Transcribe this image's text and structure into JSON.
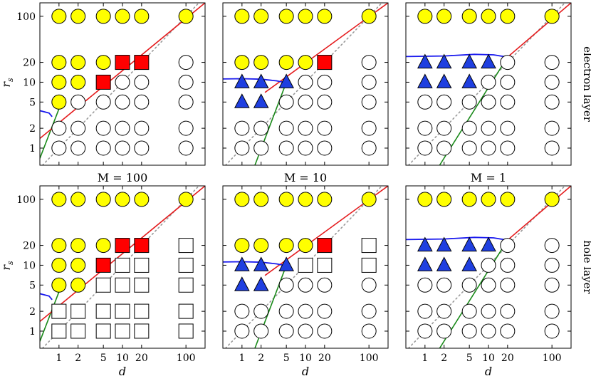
{
  "chart_data": {
    "type": "scatter",
    "x_scale": "log",
    "y_scale": "log",
    "xlim": [
      0.5,
      200
    ],
    "ylim": [
      0.55,
      160
    ],
    "xlabel": "d",
    "ylabel": "r_s",
    "x_ticks": [
      1,
      2,
      5,
      10,
      20,
      100
    ],
    "y_ticks": [
      1,
      2,
      5,
      10,
      20,
      100
    ],
    "column_labels": [
      "M = 100",
      "M = 10",
      "M = 1"
    ],
    "row_labels": [
      "electron layer",
      "hole layer"
    ],
    "x_grid": [
      1,
      2,
      5,
      10,
      20,
      100
    ],
    "y_grid": [
      1,
      2,
      5,
      10,
      20,
      100
    ],
    "marker_colors": {
      "Y": "#ffff00",
      "R": "#ff0000",
      "B": "#1f3fe0",
      "W": "#ffffff"
    },
    "marker_shapes": {
      "Y": "circle",
      "R": "square",
      "B": "triangle",
      "W": "circle",
      "S": "square"
    },
    "line_colors": {
      "red": "#e41a1c",
      "green": "#1a8a1a",
      "blue": "#1a1aee",
      "dotted": "#999999"
    },
    "panels": [
      {
        "row": "electron layer",
        "M": 100,
        "grid": [
          "YYYYYY",
          "YYYRRW",
          "YYRWWW",
          "YWWWWW",
          "WWWWWW",
          "WWWWWW"
        ],
        "red_line": [
          [
            0.5,
            1.4
          ],
          [
            200,
            160
          ]
        ],
        "green_line": [
          [
            0.5,
            0.7
          ],
          [
            1.1,
            5
          ]
        ],
        "blue_curve": [
          [
            0.5,
            3.7
          ],
          [
            0.7,
            3.4
          ],
          [
            0.78,
            3.0
          ]
        ],
        "dotted_line": [
          [
            0.55,
            0.55
          ],
          [
            200,
            200
          ]
        ]
      },
      {
        "row": "electron layer",
        "M": 10,
        "grid": [
          "YYYYYY",
          "YYYYRW",
          "BBBWWW",
          "BBWWWW",
          "WWWWWW",
          "WWWWWW"
        ],
        "red_line": [
          [
            2.3,
            7
          ],
          [
            200,
            160
          ]
        ],
        "green_line": [
          [
            1.6,
            0.55
          ],
          [
            5,
            10
          ]
        ],
        "blue_curve": [
          [
            0.5,
            11.2
          ],
          [
            1,
            11.3
          ],
          [
            2,
            11.1
          ],
          [
            3.5,
            10.5
          ],
          [
            5,
            9.8
          ]
        ],
        "dotted_line": [
          [
            0.55,
            0.55
          ],
          [
            200,
            200
          ]
        ]
      },
      {
        "row": "electron layer",
        "M": 1,
        "grid": [
          "YYYYYY",
          "BBBBWW",
          "BBBWWW",
          "WWWWWW",
          "WWWWWW",
          "WWWWWW"
        ],
        "red_line": [
          [
            20,
            24
          ],
          [
            200,
            160
          ]
        ],
        "green_line": [
          [
            1.7,
            0.55
          ],
          [
            20,
            24
          ]
        ],
        "blue_curve": [
          [
            0.5,
            24.5
          ],
          [
            2,
            25
          ],
          [
            6,
            26.5
          ],
          [
            12,
            26
          ],
          [
            20,
            24
          ]
        ],
        "dotted_line": [
          [
            0.55,
            0.55
          ],
          [
            200,
            200
          ]
        ]
      },
      {
        "row": "hole layer",
        "M": 100,
        "grid": [
          "YYYYYY",
          "YYYRRS",
          "YYRSSS",
          "YYSSSS",
          "SSSSSS",
          "SSSSSS"
        ],
        "red_line": [
          [
            0.5,
            1.4
          ],
          [
            200,
            160
          ]
        ],
        "green_line": [
          [
            0.5,
            0.7
          ],
          [
            1.1,
            5
          ]
        ],
        "blue_curve": [
          [
            0.5,
            3.7
          ],
          [
            0.7,
            3.4
          ],
          [
            0.78,
            3.0
          ]
        ],
        "dotted_line": [
          [
            0.55,
            0.55
          ],
          [
            200,
            200
          ]
        ]
      },
      {
        "row": "hole layer",
        "M": 10,
        "grid": [
          "YYYYYY",
          "YYYYRS",
          "BBBSSS",
          "BBWWWW",
          "WWWWWW",
          "WWWWWW"
        ],
        "red_line": [
          [
            2.3,
            7
          ],
          [
            200,
            160
          ]
        ],
        "green_line": [
          [
            1.6,
            0.55
          ],
          [
            5,
            10
          ]
        ],
        "blue_curve": [
          [
            0.5,
            11.2
          ],
          [
            1,
            11.3
          ],
          [
            2,
            11.1
          ],
          [
            3.5,
            10.5
          ],
          [
            5,
            9.8
          ]
        ],
        "dotted_line": [
          [
            0.55,
            0.55
          ],
          [
            200,
            200
          ]
        ]
      },
      {
        "row": "hole layer",
        "M": 1,
        "grid": [
          "YYYYYY",
          "BBBBWW",
          "BBBWWW",
          "WWWWWW",
          "WWWWWW",
          "WWWWWW"
        ],
        "red_line": [
          [
            20,
            24
          ],
          [
            200,
            160
          ]
        ],
        "green_line": [
          [
            1.7,
            0.55
          ],
          [
            20,
            24
          ]
        ],
        "blue_curve": [
          [
            0.5,
            24.5
          ],
          [
            2,
            25
          ],
          [
            6,
            26.5
          ],
          [
            12,
            26
          ],
          [
            20,
            24
          ]
        ],
        "dotted_line": [
          [
            0.55,
            0.55
          ],
          [
            200,
            200
          ]
        ]
      }
    ]
  }
}
